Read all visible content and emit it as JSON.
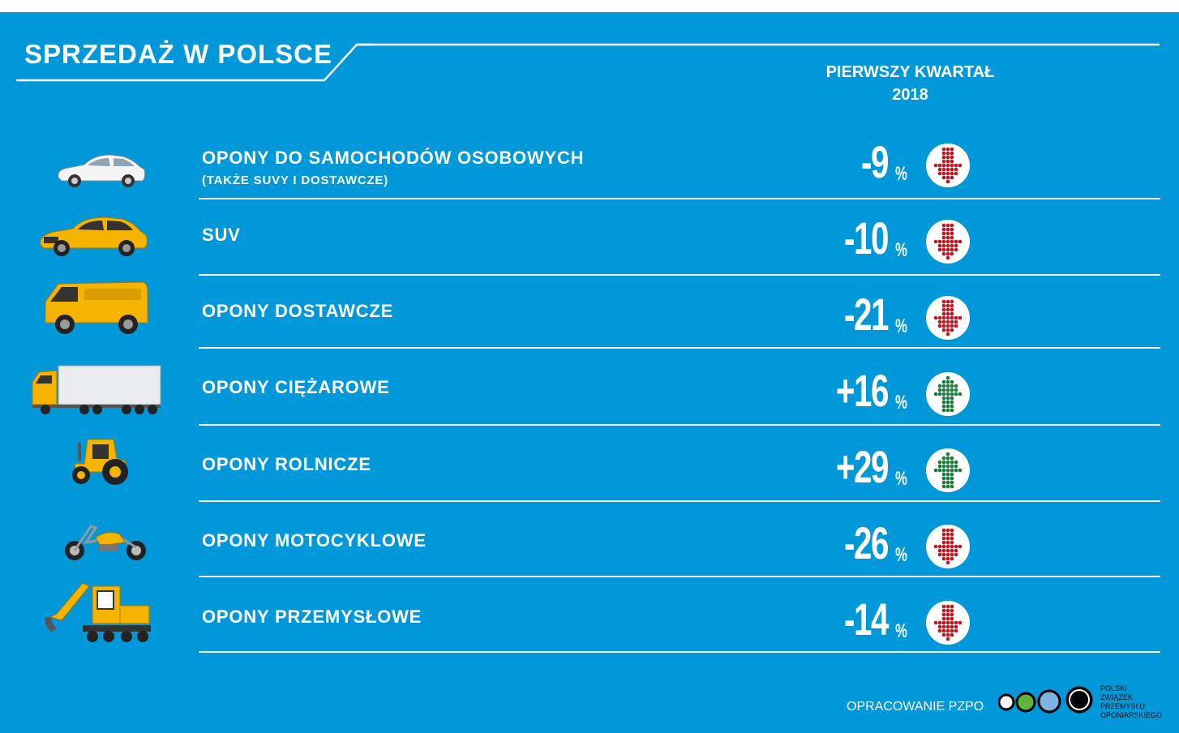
{
  "header": {
    "title": "SPRZEDAŻ W POLSCE",
    "period_line1": "PIERWSZY KWARTAŁ",
    "period_line2": "2018"
  },
  "rows": [
    {
      "label": "OPONY DO SAMOCHODÓW OSOBOWYCH",
      "sublabel": "(TAKŻE SUVY I DOSTAWCZE)",
      "value": "-9",
      "unit": "%",
      "trend": "down",
      "icon": "car-icon"
    },
    {
      "label": "SUV",
      "sublabel": "",
      "value": "-10",
      "unit": "%",
      "trend": "down",
      "icon": "suv-icon"
    },
    {
      "label": "OPONY DOSTAWCZE",
      "sublabel": "",
      "value": "-21",
      "unit": "%",
      "trend": "down",
      "icon": "van-icon"
    },
    {
      "label": "OPONY CIĘŻAROWE",
      "sublabel": "",
      "value": "+16",
      "unit": "%",
      "trend": "up",
      "icon": "truck-icon"
    },
    {
      "label": "OPONY ROLNICZE",
      "sublabel": "",
      "value": "+29",
      "unit": "%",
      "trend": "up",
      "icon": "tractor-icon"
    },
    {
      "label": "OPONY MOTOCYKLOWE",
      "sublabel": "",
      "value": "-26",
      "unit": "%",
      "trend": "down",
      "icon": "motorcycle-icon"
    },
    {
      "label": "OPONY PRZEMYSŁOWE",
      "sublabel": "",
      "value": "-14",
      "unit": "%",
      "trend": "down",
      "icon": "excavator-icon"
    }
  ],
  "footer": {
    "credit": "OPRACOWANIE PZPO",
    "logo_lines": [
      "POLSKI",
      "ZWIĄZEK",
      "PRZEMYSŁU",
      "OPONIARSKIEGO"
    ]
  },
  "colors": {
    "background": "#0098d8",
    "down": "#c0161f",
    "up": "#1a7a3a",
    "accent_yellow": "#f5b400"
  }
}
